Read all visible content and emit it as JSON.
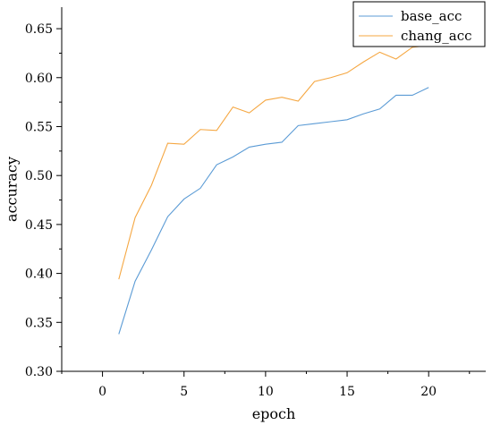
{
  "chart_data": {
    "type": "line",
    "xlabel": "epoch",
    "ylabel": "accuracy",
    "xlim": [
      -2.5,
      23.5
    ],
    "ylim": [
      0.3,
      0.672
    ],
    "x_ticks": [
      0,
      5,
      10,
      15,
      20
    ],
    "y_ticks": [
      0.3,
      0.35,
      0.4,
      0.45,
      0.5,
      0.55,
      0.6,
      0.65
    ],
    "x_tick_labels": [
      "0",
      "5",
      "10",
      "15",
      "20"
    ],
    "y_tick_labels": [
      "0.30",
      "0.35",
      "0.40",
      "0.45",
      "0.50",
      "0.55",
      "0.60",
      "0.65"
    ],
    "legend_position": "top-right",
    "grid": false,
    "x": [
      1,
      2,
      3,
      4,
      5,
      6,
      7,
      8,
      9,
      10,
      11,
      12,
      13,
      14,
      15,
      16,
      17,
      18,
      19,
      20
    ],
    "series": [
      {
        "name": "base_acc",
        "color": "#5b9bd5",
        "values": [
          0.338,
          0.392,
          0.424,
          0.458,
          0.476,
          0.487,
          0.511,
          0.519,
          0.529,
          0.532,
          0.534,
          0.551,
          0.553,
          0.555,
          0.557,
          0.563,
          0.568,
          0.582,
          0.582,
          0.59
        ]
      },
      {
        "name": "chang_acc",
        "color": "#f5a742",
        "values": [
          0.394,
          0.457,
          0.49,
          0.533,
          0.532,
          0.547,
          0.546,
          0.57,
          0.564,
          0.577,
          0.58,
          0.576,
          0.596,
          0.6,
          0.605,
          0.616,
          0.626,
          0.619,
          0.631,
          0.633
        ]
      }
    ]
  }
}
